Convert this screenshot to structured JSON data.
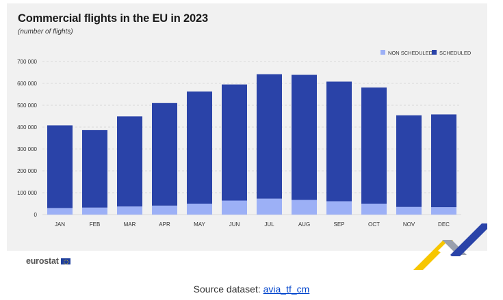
{
  "title": "Commercial flights in the EU in 2023",
  "subtitle": "(number of flights)",
  "source": {
    "label": "Source dataset:",
    "link_text": "avia_tf_cm"
  },
  "branding": {
    "logo_text": "eurostat"
  },
  "colors": {
    "scheduled": "#2a43a8",
    "non_scheduled": "#9cb0f6",
    "grid": "#d9d9d9",
    "axis_text": "#333333"
  },
  "chart_data": {
    "type": "bar",
    "stacked": true,
    "categories": [
      "JAN",
      "FEB",
      "MAR",
      "APR",
      "MAY",
      "JUN",
      "JUL",
      "AUG",
      "SEP",
      "OCT",
      "NOV",
      "DEC"
    ],
    "series": [
      {
        "name": "NON SCHEDULED",
        "values": [
          30000,
          32000,
          37000,
          41000,
          50000,
          64000,
          73000,
          67000,
          61000,
          50000,
          35000,
          34000
        ]
      },
      {
        "name": "SCHEDULED",
        "values": [
          378000,
          355000,
          412000,
          469000,
          513000,
          531000,
          569000,
          572000,
          547000,
          531000,
          419000,
          424000
        ]
      }
    ],
    "yticks": [
      "0",
      "100 000",
      "200 000",
      "300 000",
      "400 000",
      "500 000",
      "600 000",
      "700 000"
    ],
    "ylim": [
      0,
      700000
    ],
    "legend_position": "top-right",
    "grid": true
  }
}
